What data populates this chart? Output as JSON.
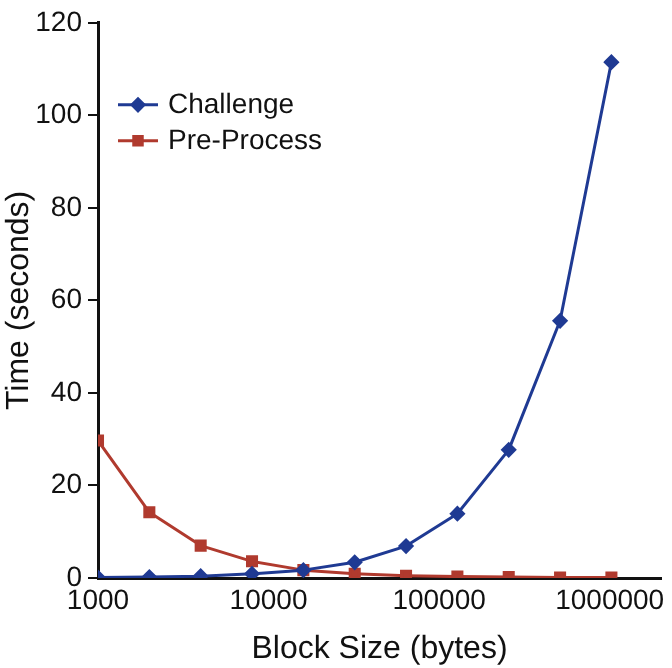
{
  "chart_data": {
    "type": "line",
    "xlabel": "Block Size (bytes)",
    "ylabel": "Time (seconds)",
    "log": "x",
    "x": [
      1000,
      2000,
      4000,
      8000,
      16000,
      32000,
      64000,
      128000,
      256000,
      512000,
      1024000
    ],
    "series": [
      {
        "name": "Challenge",
        "color": "#1f3a93",
        "marker": "diamond",
        "values": [
          0.1,
          0.2,
          0.4,
          0.9,
          1.7,
          3.4,
          6.9,
          13.9,
          27.7,
          55.6,
          111.5
        ]
      },
      {
        "name": "Pre-Process",
        "color": "#b03a2e",
        "marker": "square",
        "values": [
          29.7,
          14.2,
          7.0,
          3.6,
          1.7,
          0.9,
          0.5,
          0.3,
          0.2,
          0.1,
          0.1
        ]
      }
    ],
    "xlim": [
      1000,
      2000000
    ],
    "xticks": [
      1000,
      10000,
      100000,
      1000000
    ],
    "ylim": [
      0,
      120
    ],
    "yticks": [
      0,
      20,
      40,
      60,
      80,
      100,
      120
    ],
    "grid": false,
    "legend": "top left",
    "line_style": "solid"
  }
}
